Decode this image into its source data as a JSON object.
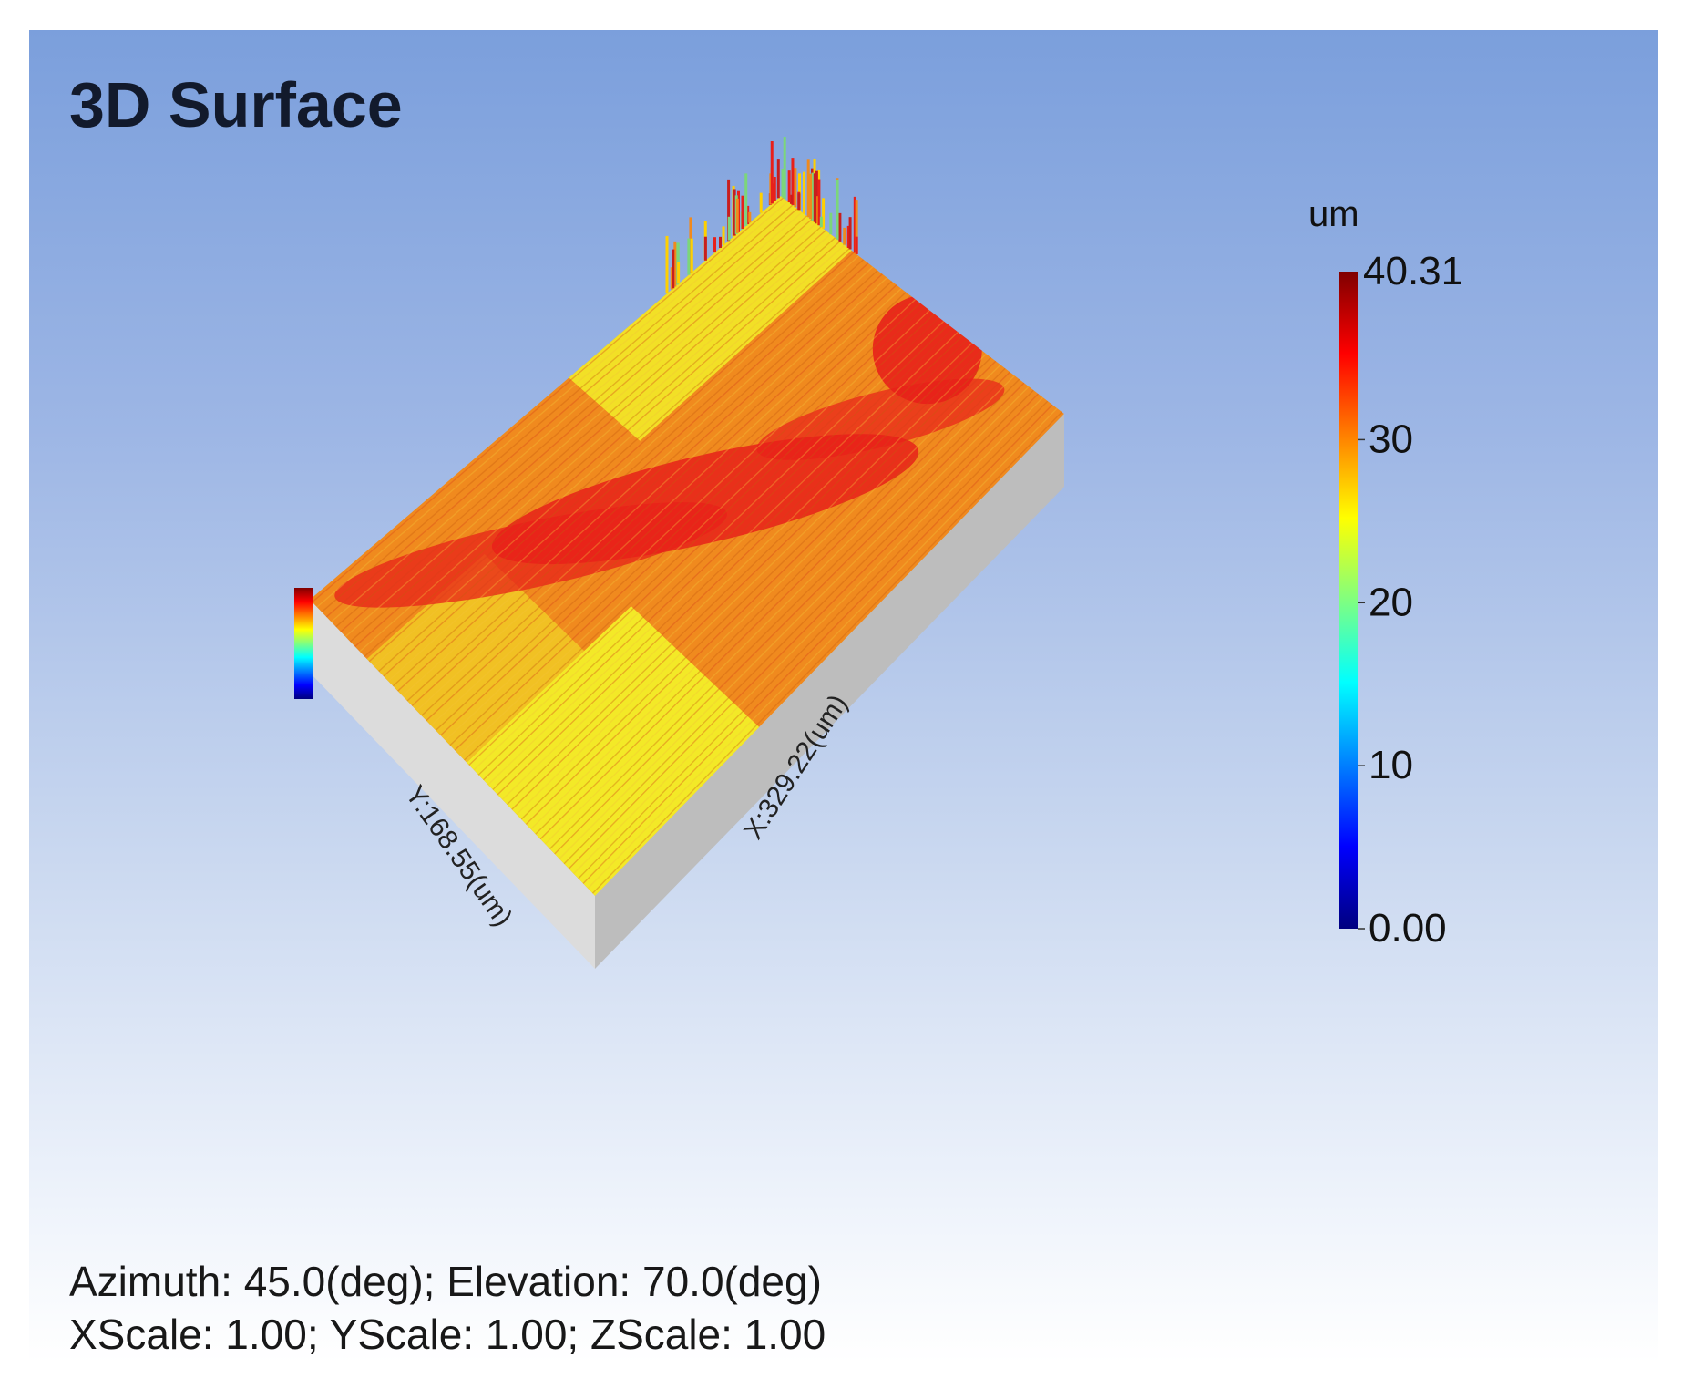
{
  "chart_data": {
    "type": "surface3d",
    "title": "3D Surface",
    "x_axis": {
      "label": "X:329.22(um)",
      "range": [
        0,
        329.22
      ],
      "unit": "um"
    },
    "y_axis": {
      "label": "Y:168.55(um)",
      "range": [
        0,
        168.55
      ],
      "unit": "um"
    },
    "z_axis": {
      "unit": "um",
      "range": [
        0.0,
        40.31
      ]
    },
    "colorbar": {
      "unit_label": "um",
      "max_label": "40.31",
      "min": 0.0,
      "max": 40.31,
      "ticks": [
        "0.00",
        "10",
        "20",
        "30"
      ],
      "tick_values": [
        0,
        10,
        20,
        30
      ],
      "colormap": [
        "#00007f",
        "#0000ff",
        "#0080ff",
        "#00ffff",
        "#80ff80",
        "#ffff00",
        "#ff8000",
        "#ff0000",
        "#7f0000"
      ]
    },
    "view": {
      "azimuth_deg": 45.0,
      "elevation_deg": 70.0,
      "xscale": 1.0,
      "yscale": 1.0,
      "zscale": 1.0
    },
    "footer_lines": [
      "Azimuth: 45.0(deg); Elevation: 70.0(deg)",
      "XScale: 1.00; YScale: 1.00; ZScale: 1.00"
    ]
  },
  "colors": {
    "box_side_light": "#dcdcdc",
    "box_side_dark": "#bdbdbd",
    "surface_dominant": "#f08a1e",
    "surface_high": "#e8201a",
    "surface_low": "#f2ee28"
  }
}
